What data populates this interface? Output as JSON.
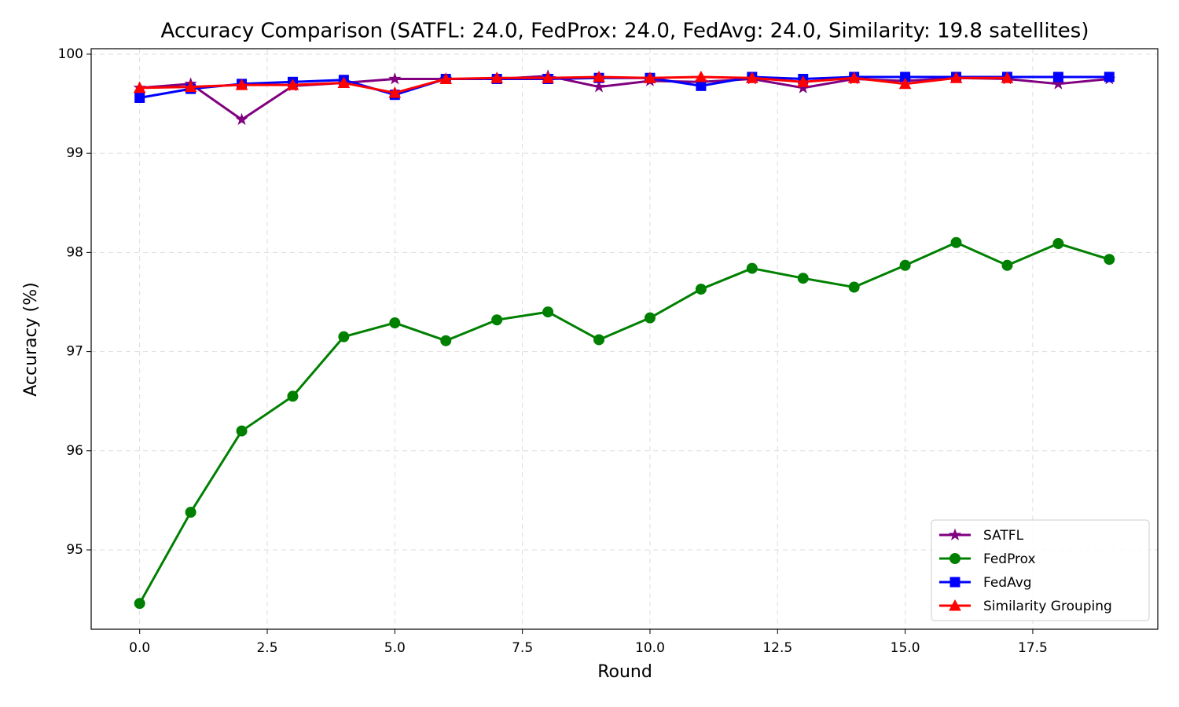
{
  "chart_data": {
    "type": "line",
    "title": "Accuracy Comparison (SATFL: 24.0, FedProx: 24.0, FedAvg: 24.0, Similarity: 19.8 satellites)",
    "xlabel": "Round",
    "ylabel": "Accuracy (%)",
    "x": [
      0,
      1,
      2,
      3,
      4,
      5,
      6,
      7,
      8,
      9,
      10,
      11,
      12,
      13,
      14,
      15,
      16,
      17,
      18,
      19
    ],
    "series": [
      {
        "name": "SATFL",
        "color": "#800080",
        "marker": "star",
        "values": [
          99.66,
          99.7,
          99.34,
          99.68,
          99.71,
          99.75,
          99.75,
          99.75,
          99.78,
          99.67,
          99.73,
          99.72,
          99.75,
          99.66,
          99.75,
          99.73,
          99.76,
          99.75,
          99.7,
          99.75
        ]
      },
      {
        "name": "FedProx",
        "color": "#008000",
        "marker": "circle",
        "values": [
          94.46,
          95.38,
          96.2,
          96.55,
          97.15,
          97.29,
          97.11,
          97.32,
          97.4,
          97.12,
          97.34,
          97.63,
          97.84,
          97.74,
          97.65,
          97.87,
          98.1,
          97.87,
          98.09,
          97.93
        ]
      },
      {
        "name": "FedAvg",
        "color": "#0000ff",
        "marker": "square",
        "values": [
          99.56,
          99.65,
          99.7,
          99.72,
          99.74,
          99.59,
          99.75,
          99.75,
          99.75,
          99.76,
          99.76,
          99.68,
          99.77,
          99.75,
          99.77,
          99.77,
          99.77,
          99.77,
          99.77,
          99.77
        ]
      },
      {
        "name": "Similarity Grouping",
        "color": "#ff0000",
        "marker": "triangle",
        "values": [
          99.66,
          99.67,
          99.69,
          99.69,
          99.71,
          99.61,
          99.75,
          99.76,
          99.76,
          99.77,
          99.76,
          99.77,
          99.76,
          99.72,
          99.76,
          99.7,
          99.76,
          99.76,
          null,
          null
        ]
      }
    ],
    "xlim": [
      -0.95,
      19.95
    ],
    "xticks": [
      {
        "value": 0,
        "label": "0.0"
      },
      2.5,
      {
        "value": 5,
        "label": "5.0"
      },
      7.5,
      {
        "value": 10,
        "label": "10.0"
      },
      12.5,
      {
        "value": 15,
        "label": "15.0"
      },
      17.5
    ],
    "ylim": [
      94.2,
      100.055
    ],
    "yticks": [
      95,
      96,
      97,
      98,
      99,
      100
    ],
    "grid": true,
    "legend": "lower right"
  }
}
